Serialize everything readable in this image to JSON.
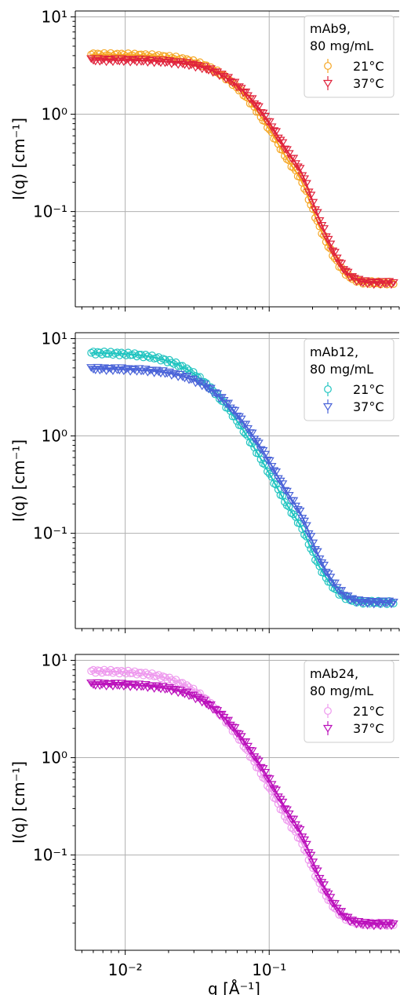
{
  "chart_data": [
    {
      "type": "scatter",
      "ylabel": "I(q) [cm⁻¹]",
      "xlabel": "",
      "xscale": "log",
      "yscale": "log",
      "xlim": [
        0.0045,
        0.8
      ],
      "ylim": [
        0.0105,
        11.5
      ],
      "x_ticks": [
        "10⁻²",
        "10⁻¹"
      ],
      "y_ticks": [
        "10¹",
        "10⁰",
        "10⁻¹"
      ],
      "grid": true,
      "legend": {
        "placement": "top-right",
        "title": "mAb9,\n80 mg/mL"
      },
      "series": [
        {
          "name": "21°C",
          "color": "#f5a623",
          "marker": "circle",
          "I0": 4.1,
          "Rg": 29.5,
          "bump": 0.22,
          "qx": 0.17,
          "bg": 0.0185
        },
        {
          "name": "37°C",
          "color": "#e0233c",
          "marker": "triangle-down",
          "I0": 3.6,
          "Rg": 25.5,
          "bump": 0.22,
          "qx": 0.17,
          "bg": 0.0185
        }
      ]
    },
    {
      "type": "scatter",
      "ylabel": "I(q) [cm⁻¹]",
      "xlabel": "",
      "xscale": "log",
      "yscale": "log",
      "xlim": [
        0.0045,
        0.8
      ],
      "ylim": [
        0.0105,
        11.5
      ],
      "x_ticks": [
        "10⁻²",
        "10⁻¹"
      ],
      "y_ticks": [
        "10¹",
        "10⁰",
        "10⁻¹"
      ],
      "grid": true,
      "legend": {
        "placement": "top-right",
        "title": "mAb12,\n80 mg/mL"
      },
      "series": [
        {
          "name": "21°C",
          "color": "#20c4c0",
          "marker": "circle",
          "I0": 7.2,
          "Rg": 48,
          "bump": 0.2,
          "qx": 0.17,
          "bg": 0.0195
        },
        {
          "name": "37°C",
          "color": "#4a63d8",
          "marker": "triangle-down",
          "I0": 4.9,
          "Rg": 36,
          "bump": 0.2,
          "qx": 0.17,
          "bg": 0.0195
        }
      ]
    },
    {
      "type": "scatter",
      "ylabel": "I(q) [cm⁻¹]",
      "xlabel": "q [Å⁻¹]",
      "xscale": "log",
      "yscale": "log",
      "xlim": [
        0.0045,
        0.8
      ],
      "ylim": [
        0.0105,
        11.5
      ],
      "x_ticks": [
        "10⁻²",
        "10⁻¹"
      ],
      "y_ticks": [
        "10¹",
        "10⁰",
        "10⁻¹"
      ],
      "grid": true,
      "legend": {
        "placement": "top-right",
        "title": "mAb24,\n80 mg/mL"
      },
      "series": [
        {
          "name": "21°C",
          "color": "#ee99ee",
          "marker": "circle",
          "I0": 7.8,
          "Rg": 46,
          "bump": 0.2,
          "qx": 0.17,
          "bg": 0.0195
        },
        {
          "name": "37°C",
          "color": "#bb11bb",
          "marker": "triangle-down",
          "I0": 5.7,
          "Rg": 37,
          "bump": 0.2,
          "qx": 0.17,
          "bg": 0.0195
        }
      ]
    }
  ]
}
